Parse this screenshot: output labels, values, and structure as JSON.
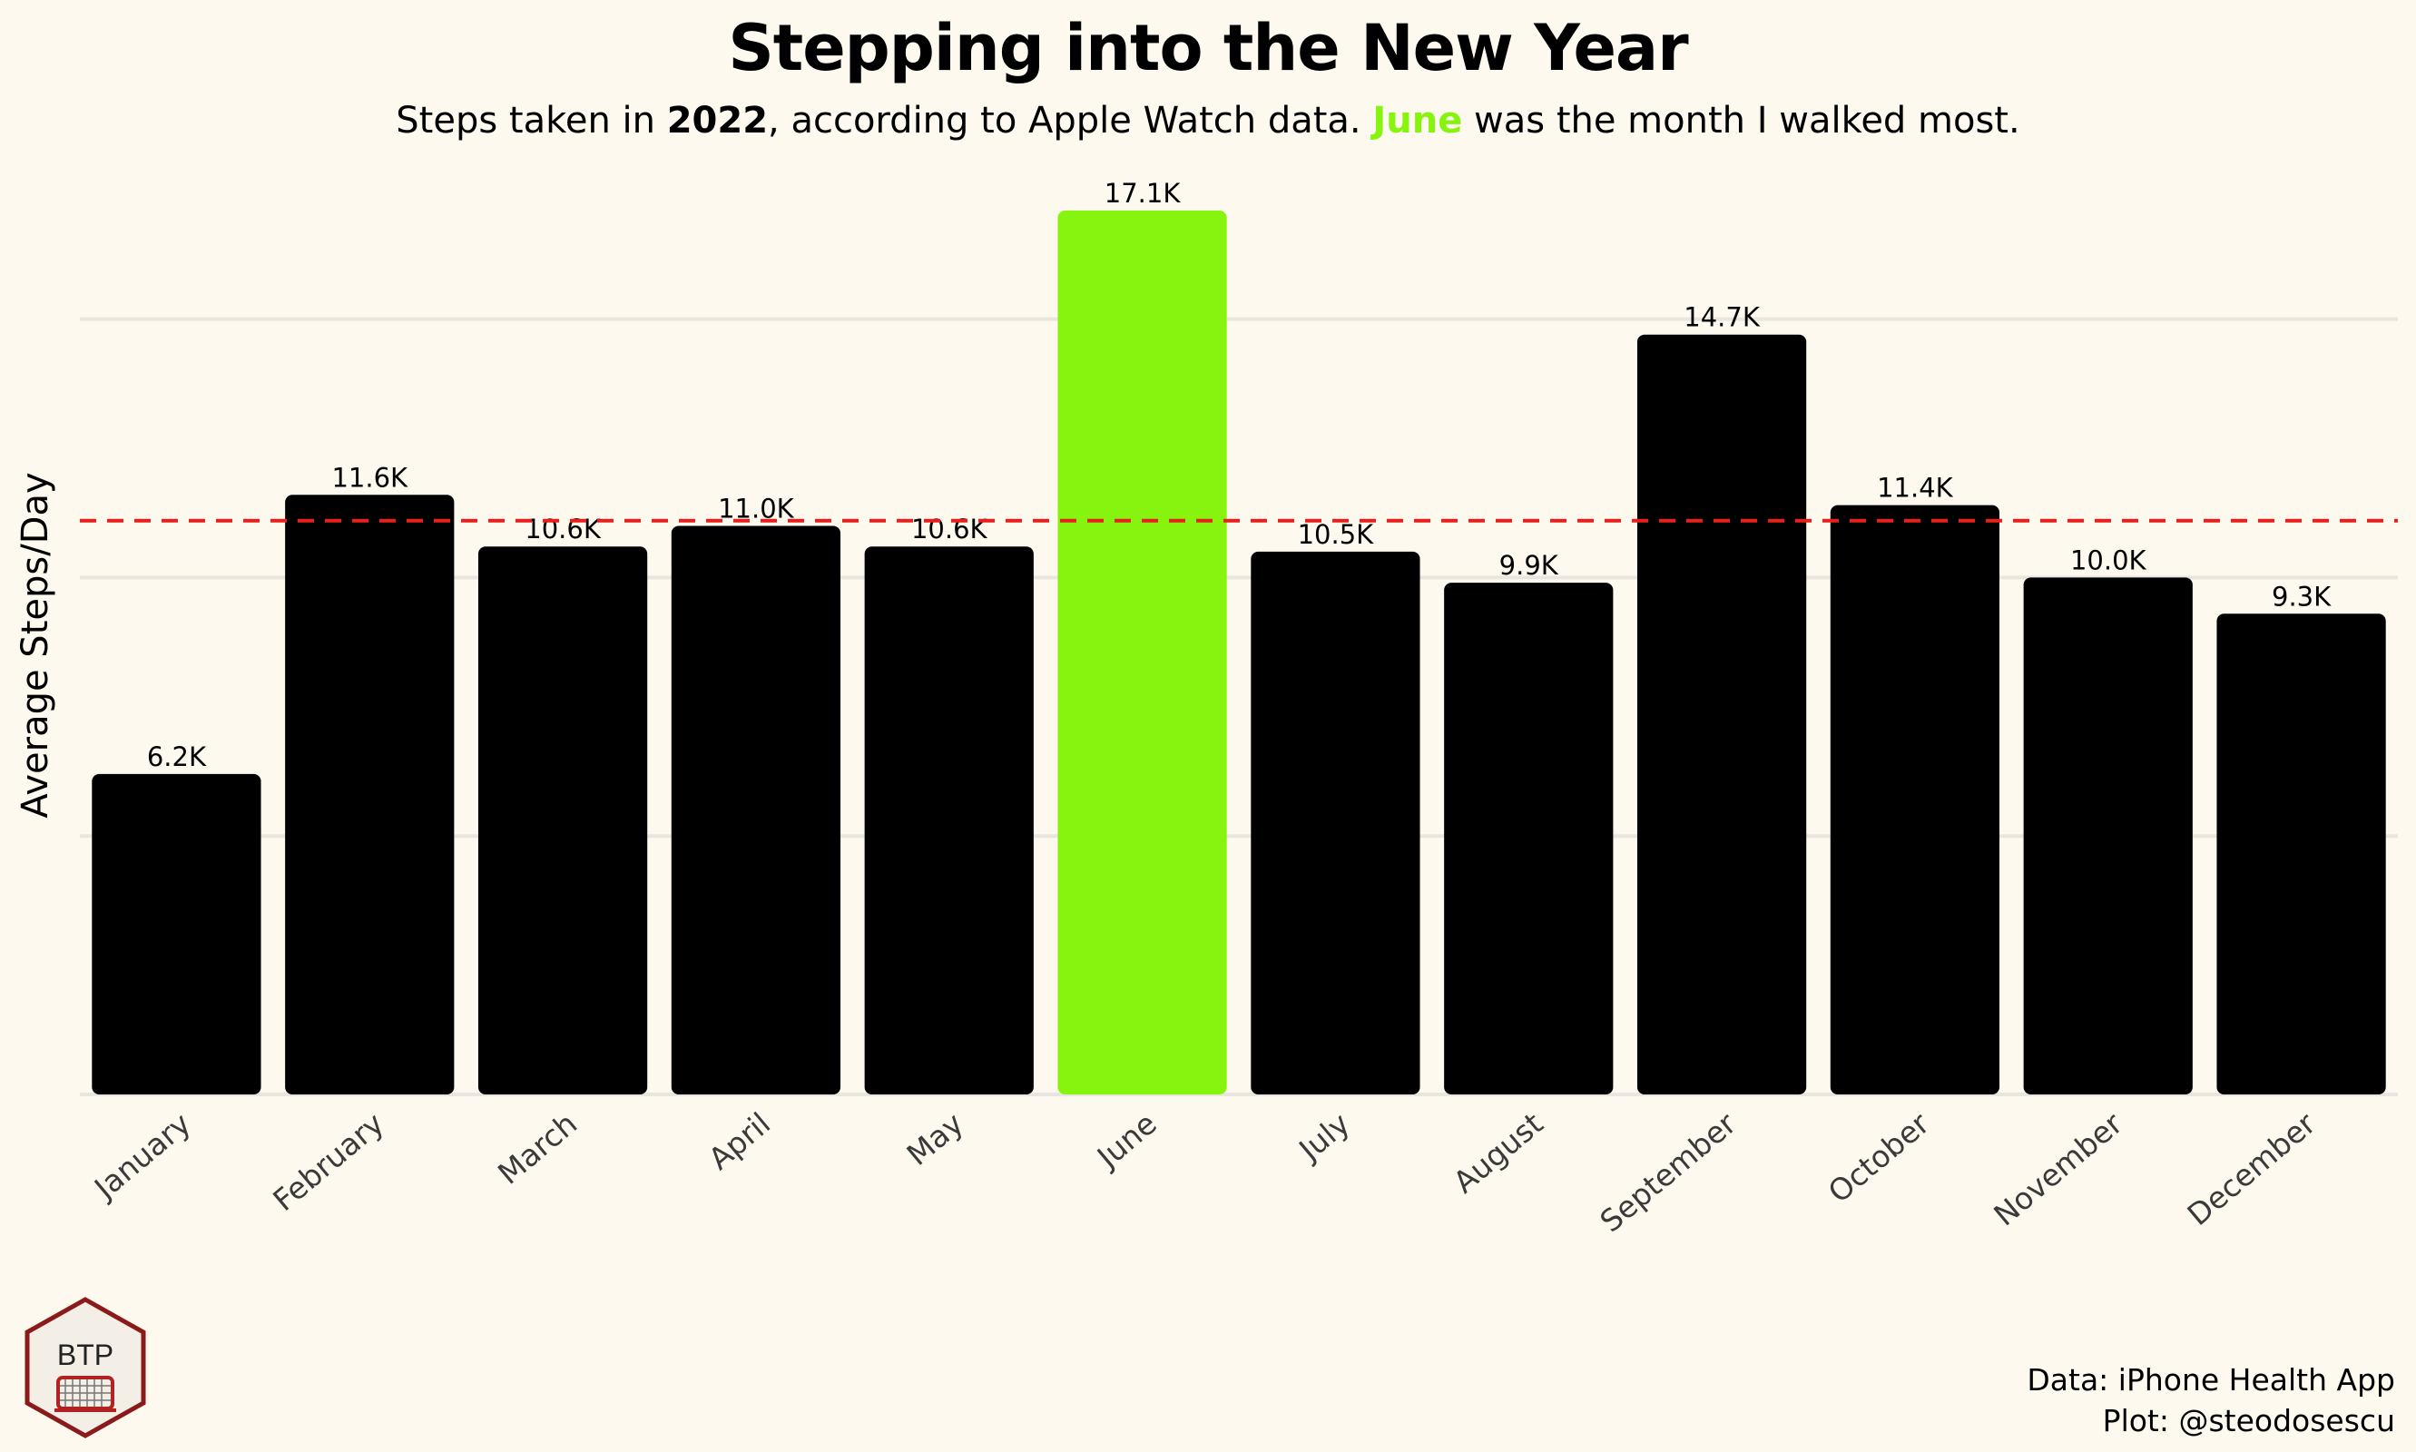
{
  "header": {
    "title": "Stepping into the New Year",
    "subtitle_pre": "Steps taken in ",
    "subtitle_year": "2022",
    "subtitle_mid": ", according to Apple Watch data. ",
    "subtitle_month": "June",
    "subtitle_post": " was the month I walked most."
  },
  "caption": {
    "line1": "Data: iPhone Health App",
    "line2": "Plot: @steodosescu"
  },
  "logo": {
    "text": "BTP",
    "icon": "hockey-net-icon",
    "border_color": "#8b1a1a"
  },
  "colors": {
    "bar": "#000000",
    "highlight": "#86f40f",
    "average_line": "#e8201c",
    "grid": "#e9e6e0",
    "background": "#fdf9ee"
  },
  "chart_data": {
    "type": "bar",
    "categories": [
      "January",
      "February",
      "March",
      "April",
      "May",
      "June",
      "July",
      "August",
      "September",
      "October",
      "November",
      "December"
    ],
    "values": [
      6.2,
      11.6,
      10.6,
      11.0,
      10.6,
      17.1,
      10.5,
      9.9,
      14.7,
      11.4,
      10.0,
      9.3
    ],
    "data_labels": [
      "6.2K",
      "11.6K",
      "10.6K",
      "11.0K",
      "10.6K",
      "17.1K",
      "10.5K",
      "9.9K",
      "14.7K",
      "11.4K",
      "10.0K",
      "9.3K"
    ],
    "highlight_index": 5,
    "average": 11.1,
    "ylabel": "Average Steps/Day",
    "ylim": [
      0,
      17.1
    ],
    "y_gridlines": [
      0,
      5,
      10,
      15
    ],
    "y_tick_labels_visible": false,
    "grid": true,
    "legend": false
  }
}
